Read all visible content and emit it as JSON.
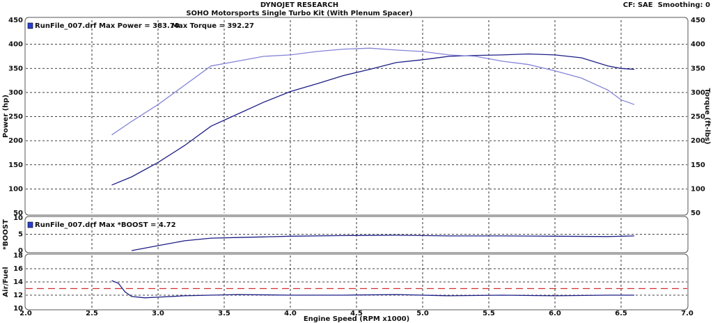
{
  "chart_data": [
    {
      "type": "line",
      "title": "DYNOJET RESEARCH",
      "subtitle": "SOHO Motorsports Single Turbo Kit (With Plenum Spacer)",
      "annotation": "CF: SAE  Smoothing: 0",
      "legend_texts": [
        "RunFile_007.drf Max Power = 383.70",
        "Max Torque = 392.27"
      ],
      "ylabel": "Power (hp)",
      "y2label": "Torque (ft-lbs)",
      "ylim": [
        50,
        450
      ],
      "yticks": [
        50,
        100,
        150,
        200,
        250,
        300,
        350,
        400,
        450
      ],
      "y2lim": [
        50,
        450
      ],
      "y2ticks": [
        50,
        100,
        150,
        200,
        250,
        300,
        350,
        400,
        450
      ],
      "x": [
        2.65,
        2.8,
        3.0,
        3.2,
        3.4,
        3.6,
        3.8,
        4.0,
        4.2,
        4.4,
        4.6,
        4.8,
        5.0,
        5.2,
        5.4,
        5.6,
        5.8,
        6.0,
        6.2,
        6.4,
        6.5,
        6.6
      ],
      "series": [
        {
          "name": "Power",
          "color": "#1c1c86",
          "values": [
            108,
            125,
            155,
            190,
            230,
            255,
            280,
            302,
            318,
            335,
            348,
            362,
            368,
            375,
            377,
            378,
            380,
            378,
            372,
            355,
            350,
            348
          ]
        },
        {
          "name": "Torque",
          "color": "#8484d8",
          "axis": "y2",
          "values": [
            212,
            240,
            275,
            315,
            355,
            365,
            375,
            378,
            385,
            390,
            392,
            388,
            385,
            378,
            375,
            365,
            358,
            345,
            330,
            305,
            285,
            275
          ]
        }
      ],
      "grid": true
    },
    {
      "type": "line",
      "legend_texts": [
        "RunFile_007.drf Max *BOOST = 4.72"
      ],
      "ylabel": "*BOOST",
      "ylim": [
        0,
        10
      ],
      "yticks": [
        0,
        5,
        10
      ],
      "x": [
        2.8,
        3.0,
        3.2,
        3.4,
        3.6,
        3.8,
        4.0,
        4.4,
        4.8,
        5.2,
        5.6,
        6.0,
        6.4,
        6.6
      ],
      "series": [
        {
          "name": "*BOOST",
          "color": "#1c1c86",
          "values": [
            0,
            1.5,
            3,
            3.8,
            4.0,
            4.2,
            4.4,
            4.6,
            4.7,
            4.5,
            4.5,
            4.4,
            4.3,
            4.5
          ]
        }
      ],
      "grid": true
    },
    {
      "type": "line",
      "ylabel": "Air/Fuel",
      "xlabel": "Engine Speed (RPM x1000)",
      "xlim": [
        2.0,
        7.0
      ],
      "xticks": [
        {
          "value": 2.0,
          "label": "2.0"
        },
        2.5,
        {
          "value": 3.0,
          "label": "3.0"
        },
        3.5,
        {
          "value": 4.0,
          "label": "4.0"
        },
        4.5,
        {
          "value": 5.0,
          "label": "5.0"
        },
        5.5,
        {
          "value": 6.0,
          "label": "6.0"
        },
        6.5,
        {
          "value": 7.0,
          "label": "7.0"
        }
      ],
      "ylim": [
        10,
        18
      ],
      "yticks": [
        10,
        12,
        14,
        16,
        18
      ],
      "x": [
        2.65,
        2.7,
        2.75,
        2.8,
        2.9,
        3.0,
        3.2,
        3.4,
        3.6,
        4.0,
        4.4,
        4.8,
        5.2,
        5.6,
        6.0,
        6.4,
        6.6
      ],
      "series": [
        {
          "name": "Air/Fuel",
          "color": "#1c1c86",
          "values": [
            14.2,
            13.8,
            12.5,
            11.8,
            11.6,
            11.7,
            11.9,
            12.0,
            12.1,
            12.0,
            12.0,
            12.1,
            11.9,
            12.0,
            11.9,
            12.0,
            12.0
          ]
        }
      ],
      "reference_line": 13,
      "reference_color": "#d03030",
      "grid": true
    }
  ]
}
